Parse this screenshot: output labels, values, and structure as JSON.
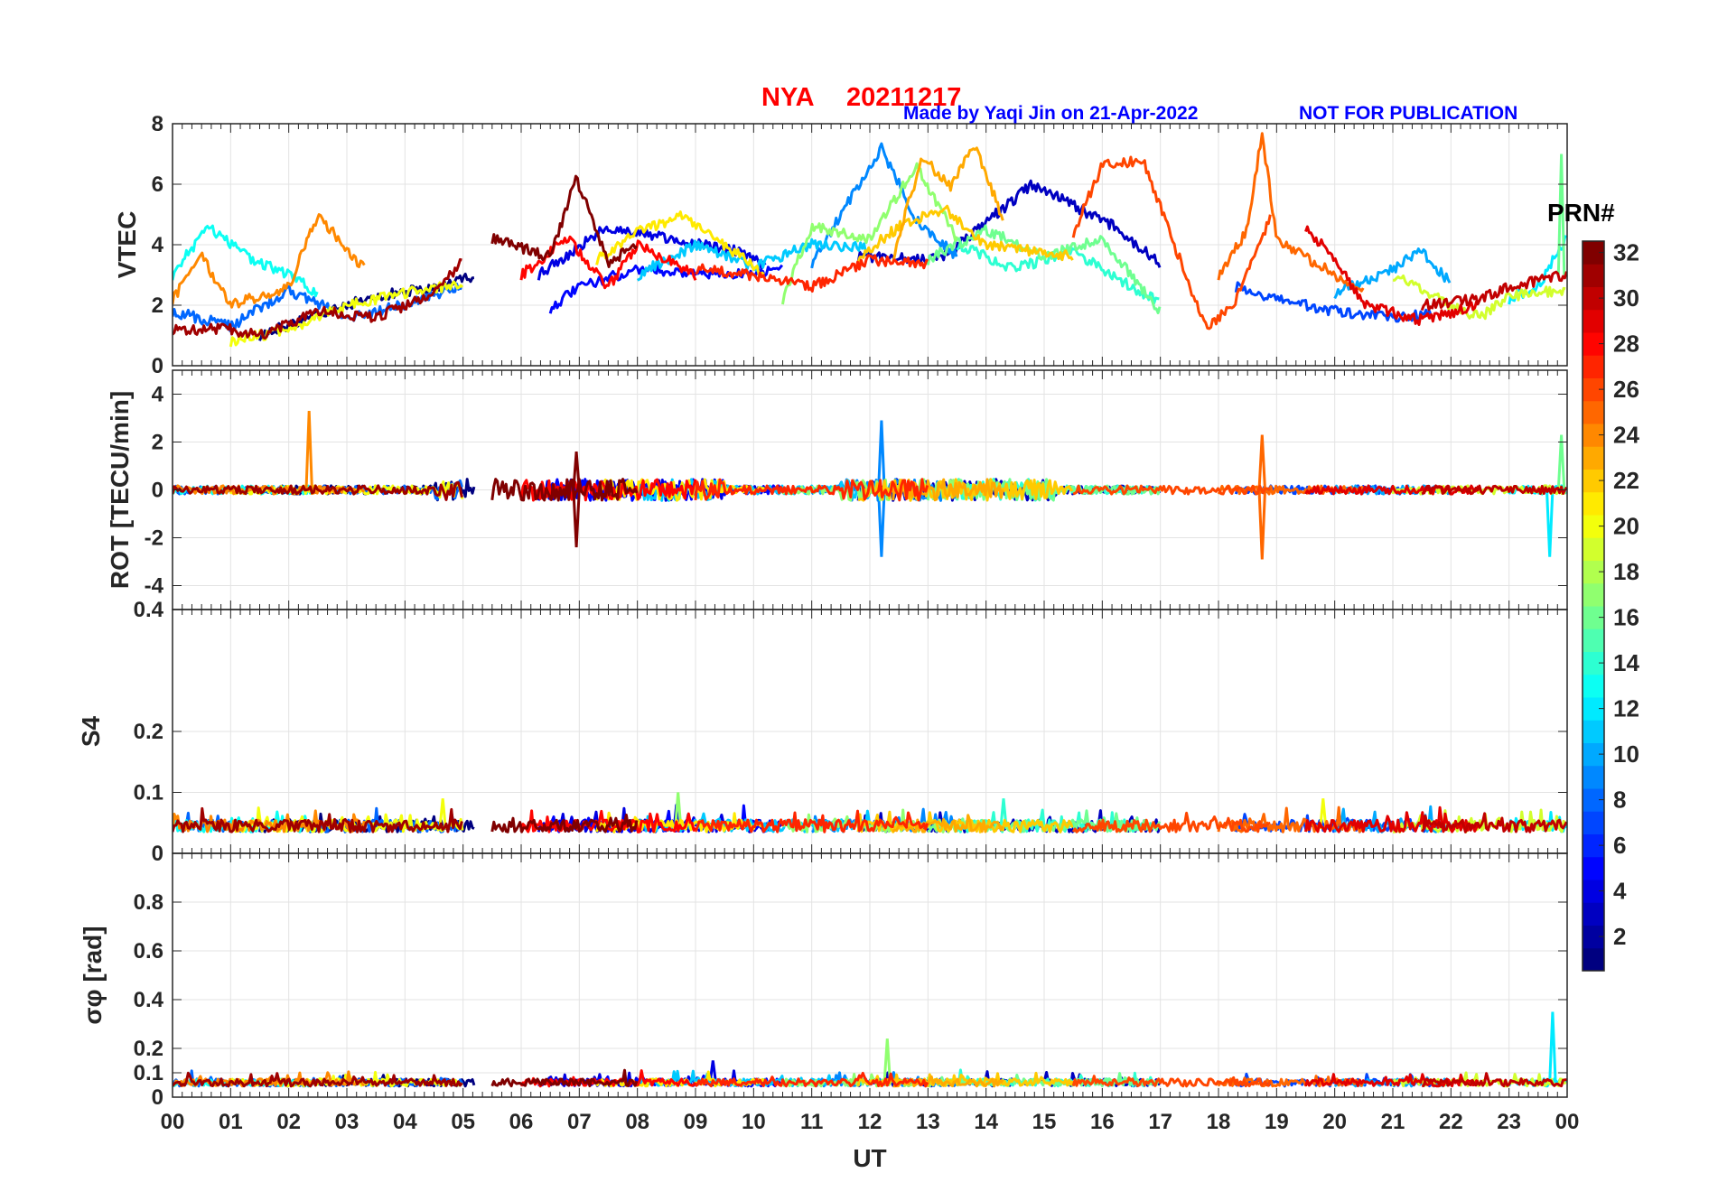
{
  "header": {
    "station": "NYA",
    "date": "20211217",
    "credit": "Made by Yaqi Jin on 21-Apr-2022",
    "notice": "NOT FOR PUBLICATION"
  },
  "chart_data": {
    "type": "line",
    "title": "NYA 20211217",
    "xlabel": "UT",
    "x_ticks": [
      "00",
      "01",
      "02",
      "03",
      "04",
      "05",
      "06",
      "07",
      "08",
      "09",
      "10",
      "11",
      "12",
      "13",
      "14",
      "15",
      "16",
      "17",
      "18",
      "19",
      "20",
      "21",
      "22",
      "23",
      "00"
    ],
    "xlim_hours": [
      0,
      24
    ],
    "grid": true,
    "panels": [
      {
        "name": "vtec",
        "ylabel": "VTEC",
        "ylim": [
          0,
          8
        ],
        "yticks": [
          {
            "v": 0,
            "t": "0"
          },
          {
            "v": 2,
            "t": "2"
          },
          {
            "v": 4,
            "t": "4"
          },
          {
            "v": 6,
            "t": "6"
          },
          {
            "v": 8,
            "t": "8"
          }
        ],
        "description": "vertical TEC per satellite, mostly 1-7 TECU, peak ~7.7 near 18.7 UT"
      },
      {
        "name": "rot",
        "ylabel": "ROT [TECU/min]",
        "ylim": [
          -5,
          5
        ],
        "yticks": [
          {
            "v": -4,
            "t": "-4"
          },
          {
            "v": -2,
            "t": "-2"
          },
          {
            "v": 0,
            "t": "0"
          },
          {
            "v": 2,
            "t": "2"
          },
          {
            "v": 4,
            "t": "4"
          }
        ],
        "description": "rate of TEC, centered at 0, spikes to about +3.3 and -2.9"
      },
      {
        "name": "s4",
        "ylabel": "S4",
        "ylim": [
          0,
          0.4
        ],
        "yticks": [
          {
            "v": 0,
            "t": "0"
          },
          {
            "v": 0.1,
            "t": "0.1"
          },
          {
            "v": 0.2,
            "t": "0.2"
          },
          {
            "v": 0.4,
            "t": "0.4"
          }
        ],
        "description": "amplitude scintillation index, about 0.03-0.1"
      },
      {
        "name": "sigma_phi",
        "ylabel": "σφ [rad]",
        "ylim": [
          0,
          1
        ],
        "yticks": [
          {
            "v": 0,
            "t": "0"
          },
          {
            "v": 0.1,
            "t": "0.1"
          },
          {
            "v": 0.2,
            "t": "0.2"
          },
          {
            "v": 0.4,
            "t": "0.4"
          },
          {
            "v": 0.6,
            "t": "0.6"
          },
          {
            "v": 0.8,
            "t": "0.8"
          }
        ],
        "description": "phase scintillation index, about 0.03-0.12, spikes to ~0.35 near 23.7 UT"
      }
    ],
    "colorbar": {
      "label": "PRN#",
      "min": 1,
      "max": 32,
      "ticks": [
        "2",
        "4",
        "6",
        "8",
        "10",
        "12",
        "14",
        "16",
        "18",
        "20",
        "22",
        "24",
        "26",
        "28",
        "30",
        "32"
      ],
      "colormap": "jet"
    },
    "series": [
      {
        "prn": 1,
        "vtec_pts": [
          [
            1.5,
            1.0
          ],
          [
            2.5,
            1.7
          ],
          [
            3.5,
            2.3
          ],
          [
            4.6,
            2.6
          ],
          [
            5.2,
            3.0
          ]
        ],
        "events": []
      },
      {
        "prn": 3,
        "vtec_pts": [
          [
            11.8,
            3.6
          ],
          [
            13.2,
            3.5
          ],
          [
            14.8,
            6.0
          ],
          [
            16.2,
            4.6
          ],
          [
            17.0,
            3.4
          ]
        ],
        "events": []
      },
      {
        "prn": 4,
        "vtec_pts": [
          [
            6.3,
            3.0
          ],
          [
            7.5,
            4.6
          ],
          [
            8.5,
            4.2
          ],
          [
            9.7,
            3.8
          ],
          [
            10.2,
            3.3
          ]
        ],
        "events": [
          [
            9.3,
            0.15,
            "sp"
          ]
        ]
      },
      {
        "prn": 5,
        "vtec_pts": [
          [
            6.5,
            1.9
          ],
          [
            7.0,
            2.6
          ],
          [
            8.0,
            3.2
          ],
          [
            9.5,
            3.0
          ],
          [
            10.5,
            3.2
          ]
        ],
        "events": []
      },
      {
        "prn": 7,
        "vtec_pts": [
          [
            18.3,
            2.6
          ],
          [
            19.0,
            2.2
          ],
          [
            20.0,
            1.8
          ],
          [
            21.0,
            1.6
          ],
          [
            21.7,
            1.7
          ]
        ],
        "events": []
      },
      {
        "prn": 8,
        "vtec_pts": [
          [
            0.0,
            1.8
          ],
          [
            1.0,
            1.3
          ],
          [
            2.0,
            2.5
          ],
          [
            3.0,
            1.6
          ],
          [
            4.0,
            2.0
          ],
          [
            5.0,
            2.7
          ]
        ],
        "events": []
      },
      {
        "prn": 9,
        "vtec_pts": [
          [
            11.0,
            3.4
          ],
          [
            12.2,
            7.2
          ],
          [
            12.8,
            4.8
          ],
          [
            13.5,
            3.6
          ]
        ],
        "events": [
          [
            12.2,
            2.9,
            "rot"
          ],
          [
            12.2,
            -2.8,
            "rot"
          ]
        ]
      },
      {
        "prn": 10,
        "vtec_pts": [
          [
            20.0,
            2.4
          ],
          [
            20.5,
            2.8
          ],
          [
            21.0,
            3.2
          ],
          [
            21.5,
            3.8
          ],
          [
            22.0,
            2.7
          ]
        ],
        "events": []
      },
      {
        "prn": 11,
        "vtec_pts": [
          [
            8.0,
            3.0
          ],
          [
            9.0,
            4.0
          ],
          [
            10.0,
            3.3
          ],
          [
            11.0,
            4.0
          ],
          [
            12.0,
            3.9
          ]
        ],
        "events": []
      },
      {
        "prn": 12,
        "vtec_pts": [
          [
            23.0,
            2.2
          ],
          [
            23.5,
            2.6
          ],
          [
            24.0,
            4.3
          ]
        ],
        "events": [
          [
            23.75,
            0.35,
            "sp"
          ],
          [
            23.7,
            -2.8,
            "rot"
          ]
        ]
      },
      {
        "prn": 13,
        "vtec_pts": [
          [
            0.0,
            3.0
          ],
          [
            0.6,
            4.6
          ],
          [
            1.3,
            3.6
          ],
          [
            2.0,
            3.0
          ],
          [
            2.5,
            2.4
          ]
        ],
        "events": []
      },
      {
        "prn": 14,
        "vtec_pts": [
          [
            13.5,
            4.0
          ],
          [
            14.5,
            3.2
          ],
          [
            15.5,
            3.8
          ],
          [
            16.5,
            2.6
          ],
          [
            17.0,
            2.1
          ]
        ],
        "events": [
          [
            14.3,
            0.09,
            "s4"
          ]
        ]
      },
      {
        "prn": 16,
        "vtec_pts": [
          [
            13.0,
            3.5
          ],
          [
            14.0,
            4.5
          ],
          [
            15.0,
            3.6
          ],
          [
            16.0,
            4.2
          ],
          [
            17.0,
            1.8
          ]
        ],
        "events": [
          [
            23.9,
            7.0,
            "vt"
          ],
          [
            23.9,
            2.3,
            "rot"
          ]
        ]
      },
      {
        "prn": 17,
        "vtec_pts": [
          [
            10.5,
            2.2
          ],
          [
            11.0,
            4.6
          ],
          [
            12.0,
            4.2
          ],
          [
            12.8,
            6.6
          ],
          [
            13.5,
            4.2
          ]
        ],
        "events": [
          [
            12.3,
            0.24,
            "sp"
          ],
          [
            8.7,
            0.1,
            "s4"
          ]
        ]
      },
      {
        "prn": 19,
        "vtec_pts": [
          [
            21.0,
            3.0
          ],
          [
            22.0,
            2.0
          ],
          [
            22.5,
            1.6
          ],
          [
            23.0,
            2.3
          ],
          [
            24.0,
            2.5
          ]
        ],
        "events": []
      },
      {
        "prn": 20,
        "vtec_pts": [
          [
            1.0,
            0.8
          ],
          [
            2.0,
            1.2
          ],
          [
            3.0,
            2.0
          ],
          [
            4.0,
            2.4
          ],
          [
            5.0,
            2.7
          ]
        ],
        "events": [
          [
            4.65,
            0.09,
            "s4"
          ],
          [
            19.8,
            0.09,
            "s4"
          ]
        ]
      },
      {
        "prn": 21,
        "vtec_pts": [
          [
            7.3,
            3.5
          ],
          [
            8.0,
            4.4
          ],
          [
            8.8,
            5.0
          ],
          [
            9.5,
            4.0
          ],
          [
            10.2,
            3.0
          ]
        ],
        "events": []
      },
      {
        "prn": 22,
        "vtec_pts": [
          [
            11.8,
            3.6
          ],
          [
            12.5,
            4.6
          ],
          [
            13.3,
            5.2
          ],
          [
            14.0,
            4.0
          ],
          [
            15.5,
            3.6
          ]
        ],
        "events": []
      },
      {
        "prn": 23,
        "vtec_pts": [
          [
            12.4,
            3.6
          ],
          [
            12.9,
            6.9
          ],
          [
            13.4,
            5.9
          ],
          [
            13.8,
            7.3
          ],
          [
            14.3,
            4.8
          ]
        ],
        "events": []
      },
      {
        "prn": 24,
        "vtec_pts": [
          [
            0.0,
            2.2
          ],
          [
            0.5,
            3.6
          ],
          [
            1.0,
            2.0
          ],
          [
            2.0,
            2.6
          ],
          [
            2.5,
            5.0
          ],
          [
            3.3,
            3.2
          ]
        ],
        "events": [
          [
            2.35,
            3.3,
            "rot"
          ]
        ]
      },
      {
        "prn": 25,
        "vtec_pts": [
          [
            18.0,
            3.0
          ],
          [
            18.5,
            4.5
          ],
          [
            18.75,
            7.7
          ],
          [
            19.0,
            4.2
          ],
          [
            20.5,
            2.4
          ]
        ],
        "events": [
          [
            18.75,
            2.3,
            "rot"
          ],
          [
            18.75,
            -2.9,
            "rot"
          ]
        ]
      },
      {
        "prn": 27,
        "vtec_pts": [
          [
            9.0,
            3.2
          ],
          [
            10.0,
            3.0
          ],
          [
            11.0,
            2.6
          ],
          [
            12.0,
            3.5
          ],
          [
            13.0,
            3.4
          ]
        ],
        "events": []
      },
      {
        "prn": 28,
        "vtec_pts": [
          [
            6.0,
            3.0
          ],
          [
            6.8,
            4.2
          ],
          [
            7.5,
            2.6
          ],
          [
            8.0,
            4.0
          ],
          [
            9.0,
            3.0
          ]
        ],
        "events": []
      },
      {
        "prn": 29,
        "vtec_pts": [
          [
            19.5,
            4.6
          ],
          [
            20.0,
            3.5
          ],
          [
            20.5,
            2.0
          ],
          [
            21.5,
            1.5
          ],
          [
            22.5,
            2.0
          ]
        ],
        "events": []
      },
      {
        "prn": 30,
        "vtec_pts": [
          [
            21.5,
            2.0
          ],
          [
            22.5,
            2.2
          ],
          [
            23.0,
            2.6
          ],
          [
            23.5,
            2.8
          ],
          [
            24.0,
            3.0
          ]
        ],
        "events": []
      },
      {
        "prn": 31,
        "vtec_pts": [
          [
            0.0,
            1.2
          ],
          [
            1.0,
            1.2
          ],
          [
            1.5,
            1.0
          ],
          [
            2.5,
            1.8
          ],
          [
            3.5,
            1.6
          ],
          [
            4.5,
            2.4
          ],
          [
            5.0,
            3.5
          ]
        ],
        "events": []
      },
      {
        "prn": 32,
        "vtec_pts": [
          [
            5.5,
            4.2
          ],
          [
            6.5,
            3.6
          ],
          [
            6.95,
            6.2
          ],
          [
            7.5,
            3.4
          ],
          [
            8.0,
            4.0
          ]
        ],
        "events": [
          [
            6.95,
            -2.4,
            "rot"
          ],
          [
            6.95,
            1.6,
            "rot"
          ]
        ]
      },
      {
        "prn": 26,
        "vtec_pts": [
          [
            15.5,
            4.4
          ],
          [
            16.0,
            6.6
          ],
          [
            16.7,
            6.8
          ],
          [
            17.2,
            4.2
          ],
          [
            17.8,
            1.2
          ],
          [
            18.3,
            2.2
          ],
          [
            18.9,
            4.9
          ]
        ],
        "events": []
      }
    ]
  }
}
